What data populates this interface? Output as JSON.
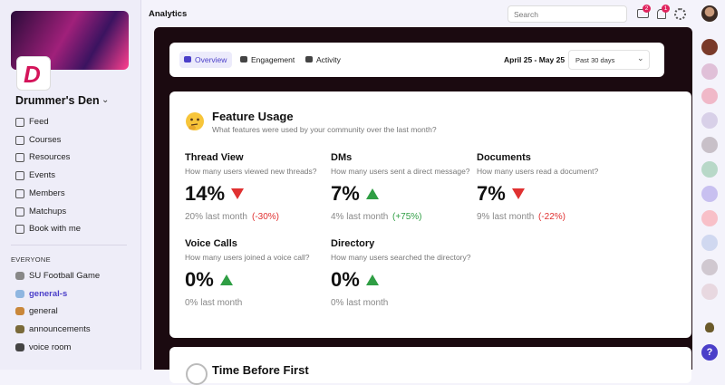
{
  "sidebar": {
    "community_name": "Drummer's Den",
    "nav": [
      "Feed",
      "Courses",
      "Resources",
      "Events",
      "Members",
      "Matchups",
      "Book with me"
    ],
    "section": "EVERYONE",
    "channels": [
      "SU Football Game",
      "general-s",
      "general",
      "announcements",
      "voice room"
    ],
    "active_channel": 1
  },
  "topbar": {
    "title": "Analytics",
    "search_placeholder": "Search",
    "inbox_badge": 2,
    "notification_badge": 1
  },
  "tabs": {
    "items": [
      "Overview",
      "Engagement",
      "Activity"
    ],
    "active": 0,
    "date_range": "April 25 - May 25",
    "period": "Past 30 days"
  },
  "feature_usage": {
    "title": "Feature Usage",
    "subtitle": "What features were used by your community over the last month?",
    "metrics": [
      {
        "name": "Thread View",
        "question": "How many users viewed new threads?",
        "value": "14%",
        "previous": "20% last month",
        "change": "(-30%)",
        "trend": "down"
      },
      {
        "name": "DMs",
        "question": "How many users sent a direct message?",
        "value": "7%",
        "previous": "4% last month",
        "change": "(+75%)",
        "trend": "up"
      },
      {
        "name": "Documents",
        "question": "How many users read a document?",
        "value": "7%",
        "previous": "9% last month",
        "change": "(-22%)",
        "trend": "down"
      },
      {
        "name": "Voice Calls",
        "question": "How many users joined a voice call?",
        "value": "0%",
        "previous": "0% last month",
        "change": null,
        "trend": "up"
      },
      {
        "name": "Directory",
        "question": "How many users searched the directory?",
        "value": "0%",
        "previous": "0% last month",
        "change": null,
        "trend": "up"
      }
    ]
  },
  "next_card": {
    "title": "Time Before First"
  }
}
